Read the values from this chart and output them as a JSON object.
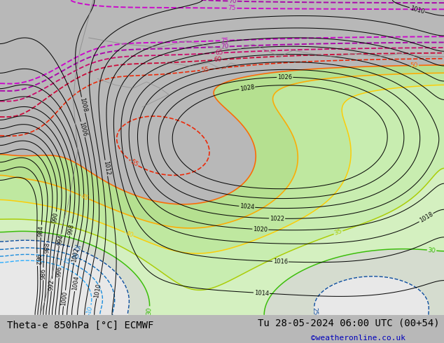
{
  "title_left": "Theta-e 850hPa [°C] ECMWF",
  "title_right": "Tu 28-05-2024 06:00 UTC (00+54)",
  "credit": "©weatheronline.co.uk",
  "font_size_title": 10,
  "font_size_credit": 8,
  "fig_width": 6.34,
  "fig_height": 4.9,
  "dpi": 100,
  "theta_colors": {
    "10": "#00ccff",
    "15": "#00aacc",
    "20": "#009900",
    "25": "#66bb00",
    "30": "#99cc00",
    "35": "#cccc00",
    "40": "#ffaa00",
    "45": "#ff6600",
    "50": "#ff3300",
    "55": "#cc0000",
    "60": "#cc0033",
    "65": "#cc0066",
    "70": "#aa00aa",
    "75": "#cc00cc"
  },
  "theta_fill_colors": [
    "#ffffff",
    "#ffffff",
    "#ffffff",
    "#ffffff",
    "#ffffff",
    "#ffffff",
    "#eeffee",
    "#ccffcc",
    "#aaffaa",
    "#99ee88",
    "#ccffaa",
    "#ffffff",
    "#ffffff",
    "#ffffff",
    "#ffffff",
    "#ffffff"
  ]
}
